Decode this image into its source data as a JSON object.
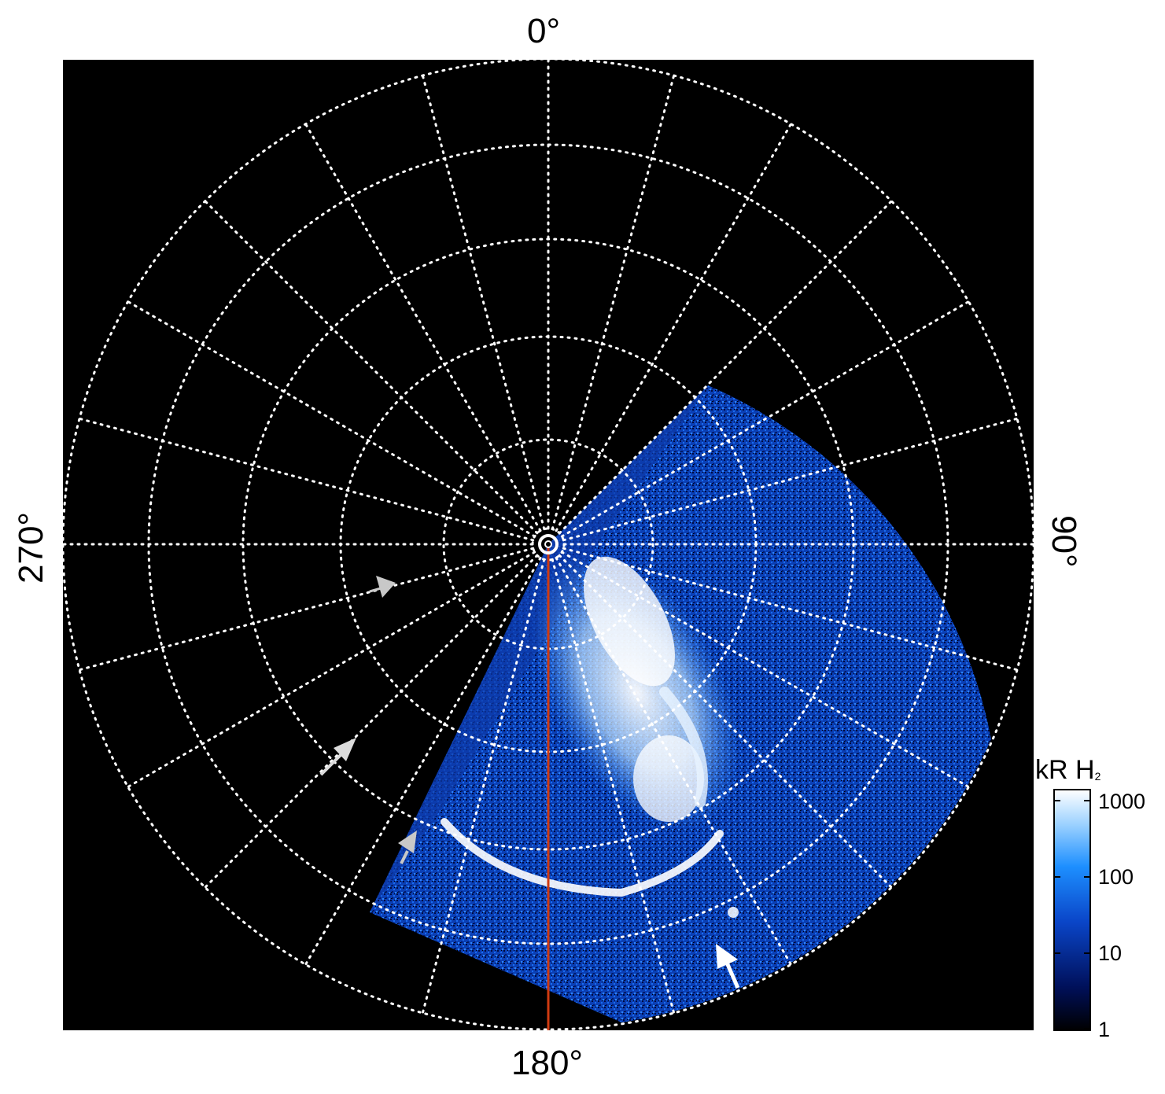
{
  "angle_labels": {
    "top": "0°",
    "right": "90°",
    "bottom": "180°",
    "left": "270°"
  },
  "colorbar": {
    "title_main": "kR H",
    "title_sub": "2",
    "ticks": [
      "1000",
      "100",
      "10",
      "1"
    ],
    "scale": "log",
    "colors": [
      "#000000",
      "#00105a",
      "#0a45c8",
      "#1d8fff",
      "#9fd3ff",
      "#ffffff"
    ]
  },
  "image": {
    "background": "#000000",
    "grid_color": "#ffffff",
    "meridian_color": "#d03a10",
    "arrow_gray": "#c8c8c8",
    "arrow_white": "#ffffff"
  }
}
